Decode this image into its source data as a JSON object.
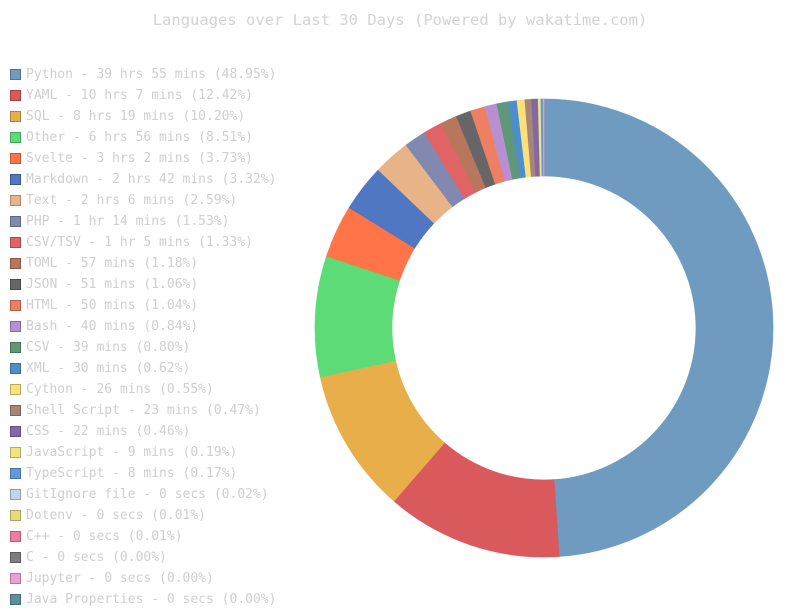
{
  "chart_data": {
    "type": "pie",
    "style": "donut",
    "title": "Languages over Last 30 Days (Powered by wakatime.com)",
    "legend_position": "left",
    "series": [
      {
        "label": "Python - 39 hrs 55 mins (48.95%)",
        "name": "Python",
        "value": 48.95,
        "color": "#6f9bc0"
      },
      {
        "label": "YAML - 10 hrs 7 mins (12.42%)",
        "name": "YAML",
        "value": 12.42,
        "color": "#d9595c"
      },
      {
        "label": "SQL - 8 hrs 19 mins (10.20%)",
        "name": "SQL",
        "value": 10.2,
        "color": "#e8ae4a"
      },
      {
        "label": "Other - 6 hrs 56 mins (8.51%)",
        "name": "Other",
        "value": 8.51,
        "color": "#5cdb76"
      },
      {
        "label": "Svelte - 3 hrs 2 mins (3.73%)",
        "name": "Svelte",
        "value": 3.73,
        "color": "#ff7548"
      },
      {
        "label": "Markdown - 2 hrs 42 mins (3.32%)",
        "name": "Markdown",
        "value": 3.32,
        "color": "#4f77c2"
      },
      {
        "label": "Text - 2 hrs 6 mins (2.59%)",
        "name": "Text",
        "value": 2.59,
        "color": "#e8b487"
      },
      {
        "label": "PHP - 1 hr 14 mins (1.53%)",
        "name": "PHP",
        "value": 1.53,
        "color": "#8189b0"
      },
      {
        "label": "CSV/TSV - 1 hr 5 mins (1.33%)",
        "name": "CSV/TSV",
        "value": 1.33,
        "color": "#e06466"
      },
      {
        "label": "TOML - 57 mins (1.18%)",
        "name": "TOML",
        "value": 1.18,
        "color": "#b8765c"
      },
      {
        "label": "JSON - 51 mins (1.06%)",
        "name": "JSON",
        "value": 1.06,
        "color": "#666666"
      },
      {
        "label": "HTML - 50 mins (1.04%)",
        "name": "HTML",
        "value": 1.04,
        "color": "#ee7f62"
      },
      {
        "label": "Bash - 40 mins (0.84%)",
        "name": "Bash",
        "value": 0.84,
        "color": "#b88fd1"
      },
      {
        "label": "CSV - 39 mins (0.80%)",
        "name": "CSV",
        "value": 0.8,
        "color": "#5e9878"
      },
      {
        "label": "XML - 30 mins (0.62%)",
        "name": "XML",
        "value": 0.62,
        "color": "#4c8fca"
      },
      {
        "label": "Cython - 26 mins (0.55%)",
        "name": "Cython",
        "value": 0.55,
        "color": "#fee17d"
      },
      {
        "label": "Shell Script - 23 mins (0.47%)",
        "name": "Shell Script",
        "value": 0.47,
        "color": "#a78577"
      },
      {
        "label": "CSS - 22 mins (0.46%)",
        "name": "CSS",
        "value": 0.46,
        "color": "#8369a3"
      },
      {
        "label": "JavaScript - 9 mins (0.19%)",
        "name": "JavaScript",
        "value": 0.19,
        "color": "#f5e380"
      },
      {
        "label": "TypeScript - 8 mins (0.17%)",
        "name": "TypeScript",
        "value": 0.17,
        "color": "#629ad8"
      },
      {
        "label": "GitIgnore file - 0 secs (0.02%)",
        "name": "GitIgnore file",
        "value": 0.02,
        "color": "#c4d4ec"
      },
      {
        "label": "Dotenv - 0 secs (0.01%)",
        "name": "Dotenv",
        "value": 0.01,
        "color": "#ecd97b"
      },
      {
        "label": "C++ - 0 secs (0.01%)",
        "name": "C++",
        "value": 0.01,
        "color": "#f07d9d"
      },
      {
        "label": "C - 0 secs (0.00%)",
        "name": "C",
        "value": 0.0,
        "color": "#7d7d7d"
      },
      {
        "label": "Jupyter - 0 secs (0.00%)",
        "name": "Jupyter",
        "value": 0.0,
        "color": "#ee9ed5"
      },
      {
        "label": "Java Properties - 0 secs (0.00%)",
        "name": "Java Properties",
        "value": 0.0,
        "color": "#5b8fa0"
      }
    ]
  }
}
